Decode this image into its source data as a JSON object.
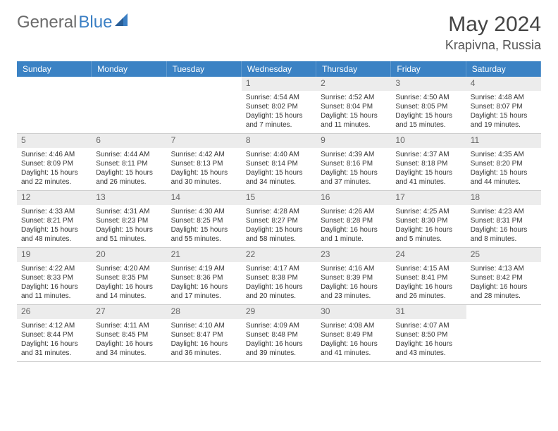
{
  "brand": {
    "part1": "General",
    "part2": "Blue"
  },
  "title": "May 2024",
  "location": "Krapivna, Russia",
  "colors": {
    "header_bg": "#3b82c4",
    "header_text": "#ffffff",
    "daynum_bg": "#ececec",
    "text": "#333333",
    "brand_gray": "#6b6b6b",
    "brand_blue": "#3b7fc4"
  },
  "dayNames": [
    "Sunday",
    "Monday",
    "Tuesday",
    "Wednesday",
    "Thursday",
    "Friday",
    "Saturday"
  ],
  "weeks": [
    [
      {
        "n": "",
        "sr": "",
        "ss": "",
        "dl": ""
      },
      {
        "n": "",
        "sr": "",
        "ss": "",
        "dl": ""
      },
      {
        "n": "",
        "sr": "",
        "ss": "",
        "dl": ""
      },
      {
        "n": "1",
        "sr": "Sunrise: 4:54 AM",
        "ss": "Sunset: 8:02 PM",
        "dl": "Daylight: 15 hours and 7 minutes."
      },
      {
        "n": "2",
        "sr": "Sunrise: 4:52 AM",
        "ss": "Sunset: 8:04 PM",
        "dl": "Daylight: 15 hours and 11 minutes."
      },
      {
        "n": "3",
        "sr": "Sunrise: 4:50 AM",
        "ss": "Sunset: 8:05 PM",
        "dl": "Daylight: 15 hours and 15 minutes."
      },
      {
        "n": "4",
        "sr": "Sunrise: 4:48 AM",
        "ss": "Sunset: 8:07 PM",
        "dl": "Daylight: 15 hours and 19 minutes."
      }
    ],
    [
      {
        "n": "5",
        "sr": "Sunrise: 4:46 AM",
        "ss": "Sunset: 8:09 PM",
        "dl": "Daylight: 15 hours and 22 minutes."
      },
      {
        "n": "6",
        "sr": "Sunrise: 4:44 AM",
        "ss": "Sunset: 8:11 PM",
        "dl": "Daylight: 15 hours and 26 minutes."
      },
      {
        "n": "7",
        "sr": "Sunrise: 4:42 AM",
        "ss": "Sunset: 8:13 PM",
        "dl": "Daylight: 15 hours and 30 minutes."
      },
      {
        "n": "8",
        "sr": "Sunrise: 4:40 AM",
        "ss": "Sunset: 8:14 PM",
        "dl": "Daylight: 15 hours and 34 minutes."
      },
      {
        "n": "9",
        "sr": "Sunrise: 4:39 AM",
        "ss": "Sunset: 8:16 PM",
        "dl": "Daylight: 15 hours and 37 minutes."
      },
      {
        "n": "10",
        "sr": "Sunrise: 4:37 AM",
        "ss": "Sunset: 8:18 PM",
        "dl": "Daylight: 15 hours and 41 minutes."
      },
      {
        "n": "11",
        "sr": "Sunrise: 4:35 AM",
        "ss": "Sunset: 8:20 PM",
        "dl": "Daylight: 15 hours and 44 minutes."
      }
    ],
    [
      {
        "n": "12",
        "sr": "Sunrise: 4:33 AM",
        "ss": "Sunset: 8:21 PM",
        "dl": "Daylight: 15 hours and 48 minutes."
      },
      {
        "n": "13",
        "sr": "Sunrise: 4:31 AM",
        "ss": "Sunset: 8:23 PM",
        "dl": "Daylight: 15 hours and 51 minutes."
      },
      {
        "n": "14",
        "sr": "Sunrise: 4:30 AM",
        "ss": "Sunset: 8:25 PM",
        "dl": "Daylight: 15 hours and 55 minutes."
      },
      {
        "n": "15",
        "sr": "Sunrise: 4:28 AM",
        "ss": "Sunset: 8:27 PM",
        "dl": "Daylight: 15 hours and 58 minutes."
      },
      {
        "n": "16",
        "sr": "Sunrise: 4:26 AM",
        "ss": "Sunset: 8:28 PM",
        "dl": "Daylight: 16 hours and 1 minute."
      },
      {
        "n": "17",
        "sr": "Sunrise: 4:25 AM",
        "ss": "Sunset: 8:30 PM",
        "dl": "Daylight: 16 hours and 5 minutes."
      },
      {
        "n": "18",
        "sr": "Sunrise: 4:23 AM",
        "ss": "Sunset: 8:31 PM",
        "dl": "Daylight: 16 hours and 8 minutes."
      }
    ],
    [
      {
        "n": "19",
        "sr": "Sunrise: 4:22 AM",
        "ss": "Sunset: 8:33 PM",
        "dl": "Daylight: 16 hours and 11 minutes."
      },
      {
        "n": "20",
        "sr": "Sunrise: 4:20 AM",
        "ss": "Sunset: 8:35 PM",
        "dl": "Daylight: 16 hours and 14 minutes."
      },
      {
        "n": "21",
        "sr": "Sunrise: 4:19 AM",
        "ss": "Sunset: 8:36 PM",
        "dl": "Daylight: 16 hours and 17 minutes."
      },
      {
        "n": "22",
        "sr": "Sunrise: 4:17 AM",
        "ss": "Sunset: 8:38 PM",
        "dl": "Daylight: 16 hours and 20 minutes."
      },
      {
        "n": "23",
        "sr": "Sunrise: 4:16 AM",
        "ss": "Sunset: 8:39 PM",
        "dl": "Daylight: 16 hours and 23 minutes."
      },
      {
        "n": "24",
        "sr": "Sunrise: 4:15 AM",
        "ss": "Sunset: 8:41 PM",
        "dl": "Daylight: 16 hours and 26 minutes."
      },
      {
        "n": "25",
        "sr": "Sunrise: 4:13 AM",
        "ss": "Sunset: 8:42 PM",
        "dl": "Daylight: 16 hours and 28 minutes."
      }
    ],
    [
      {
        "n": "26",
        "sr": "Sunrise: 4:12 AM",
        "ss": "Sunset: 8:44 PM",
        "dl": "Daylight: 16 hours and 31 minutes."
      },
      {
        "n": "27",
        "sr": "Sunrise: 4:11 AM",
        "ss": "Sunset: 8:45 PM",
        "dl": "Daylight: 16 hours and 34 minutes."
      },
      {
        "n": "28",
        "sr": "Sunrise: 4:10 AM",
        "ss": "Sunset: 8:47 PM",
        "dl": "Daylight: 16 hours and 36 minutes."
      },
      {
        "n": "29",
        "sr": "Sunrise: 4:09 AM",
        "ss": "Sunset: 8:48 PM",
        "dl": "Daylight: 16 hours and 39 minutes."
      },
      {
        "n": "30",
        "sr": "Sunrise: 4:08 AM",
        "ss": "Sunset: 8:49 PM",
        "dl": "Daylight: 16 hours and 41 minutes."
      },
      {
        "n": "31",
        "sr": "Sunrise: 4:07 AM",
        "ss": "Sunset: 8:50 PM",
        "dl": "Daylight: 16 hours and 43 minutes."
      },
      {
        "n": "",
        "sr": "",
        "ss": "",
        "dl": ""
      }
    ]
  ]
}
